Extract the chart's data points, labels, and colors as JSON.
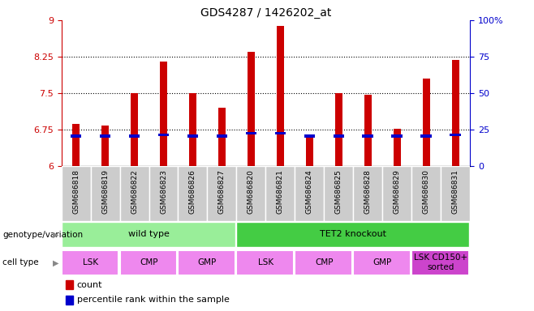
{
  "title": "GDS4287 / 1426202_at",
  "samples": [
    "GSM686818",
    "GSM686819",
    "GSM686822",
    "GSM686823",
    "GSM686826",
    "GSM686827",
    "GSM686820",
    "GSM686821",
    "GSM686824",
    "GSM686825",
    "GSM686828",
    "GSM686829",
    "GSM686830",
    "GSM686831"
  ],
  "counts": [
    6.87,
    6.84,
    7.5,
    8.15,
    7.5,
    7.2,
    8.35,
    8.88,
    6.65,
    7.5,
    7.47,
    6.78,
    7.8,
    8.18
  ],
  "percentile_vals": [
    6.62,
    6.62,
    6.62,
    6.65,
    6.62,
    6.62,
    6.68,
    6.68,
    6.62,
    6.62,
    6.62,
    6.62,
    6.62,
    6.65
  ],
  "ymin": 6.0,
  "ymax": 9.0,
  "yticks": [
    6.0,
    6.75,
    7.5,
    8.25,
    9.0
  ],
  "ytick_labels": [
    "6",
    "6.75",
    "7.5",
    "8.25",
    "9"
  ],
  "right_yticks": [
    0,
    25,
    50,
    75,
    100
  ],
  "right_ytick_positions": [
    6.0,
    6.75,
    7.5,
    8.25,
    9.0
  ],
  "right_ytick_labels": [
    "0",
    "25",
    "50",
    "75",
    "100%"
  ],
  "bar_color": "#cc0000",
  "percentile_color": "#0000cc",
  "bar_width": 0.25,
  "genotype_groups": [
    {
      "label": "wild type",
      "start": 0,
      "end": 5,
      "color": "#99ee99"
    },
    {
      "label": "TET2 knockout",
      "start": 6,
      "end": 13,
      "color": "#44cc44"
    }
  ],
  "cell_type_groups": [
    {
      "label": "LSK",
      "start": 0,
      "end": 1,
      "color": "#ee88ee"
    },
    {
      "label": "CMP",
      "start": 2,
      "end": 3,
      "color": "#ee88ee"
    },
    {
      "label": "GMP",
      "start": 4,
      "end": 5,
      "color": "#ee88ee"
    },
    {
      "label": "LSK",
      "start": 6,
      "end": 7,
      "color": "#ee88ee"
    },
    {
      "label": "CMP",
      "start": 8,
      "end": 9,
      "color": "#ee88ee"
    },
    {
      "label": "GMP",
      "start": 10,
      "end": 11,
      "color": "#ee88ee"
    },
    {
      "label": "LSK CD150+\nsorted",
      "start": 12,
      "end": 13,
      "color": "#cc44cc"
    }
  ],
  "legend_items": [
    {
      "label": "count",
      "color": "#cc0000"
    },
    {
      "label": "percentile rank within the sample",
      "color": "#0000cc"
    }
  ],
  "hline_positions": [
    6.75,
    7.5,
    8.25
  ],
  "tick_color_left": "#cc0000",
  "tick_color_right": "#0000cc",
  "ticklabel_bg": "#cccccc",
  "genotype_label": "genotype/variation",
  "celltype_label": "cell type"
}
